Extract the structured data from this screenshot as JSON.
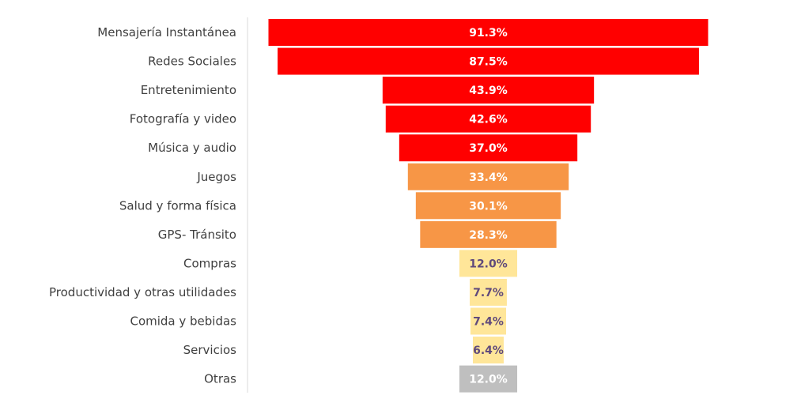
{
  "chart_data": {
    "type": "bar",
    "variant": "funnel",
    "title": "",
    "xlabel": "",
    "ylabel": "",
    "xlim": [
      0,
      100
    ],
    "categories": [
      "Mensajería Instantánea",
      "Redes Sociales",
      "Entretenimiento",
      "Fotografía y video",
      "Música y audio",
      "Juegos",
      "Salud y forma física",
      "GPS- Tránsito",
      "Compras",
      "Productividad y otras utilidades",
      "Comida y bebidas",
      "Servicios",
      "Otras"
    ],
    "values": [
      91.3,
      87.5,
      43.9,
      42.6,
      37.0,
      33.4,
      30.1,
      28.3,
      12.0,
      7.7,
      7.4,
      6.4,
      12.0
    ],
    "value_labels": [
      "91.3%",
      "87.5%",
      "43.9%",
      "42.6%",
      "37.0%",
      "33.4%",
      "30.1%",
      "28.3%",
      "12.0%",
      "7.7%",
      "7.4%",
      "6.4%",
      "12.0%"
    ],
    "groups": [
      "high",
      "high",
      "high",
      "high",
      "high",
      "mid",
      "mid",
      "mid",
      "low",
      "low",
      "low",
      "low",
      "other"
    ],
    "colors": {
      "high": "#ff0000",
      "mid": "#f79646",
      "low": "#ffe699",
      "other": "#bfbfbf"
    },
    "label_colors": {
      "high": "#ffffff",
      "mid": "#ffffff",
      "low": "#604a7b",
      "other": "#ffffff"
    },
    "axis_color": "#d9d9d9",
    "category_label_color": "#404040"
  }
}
